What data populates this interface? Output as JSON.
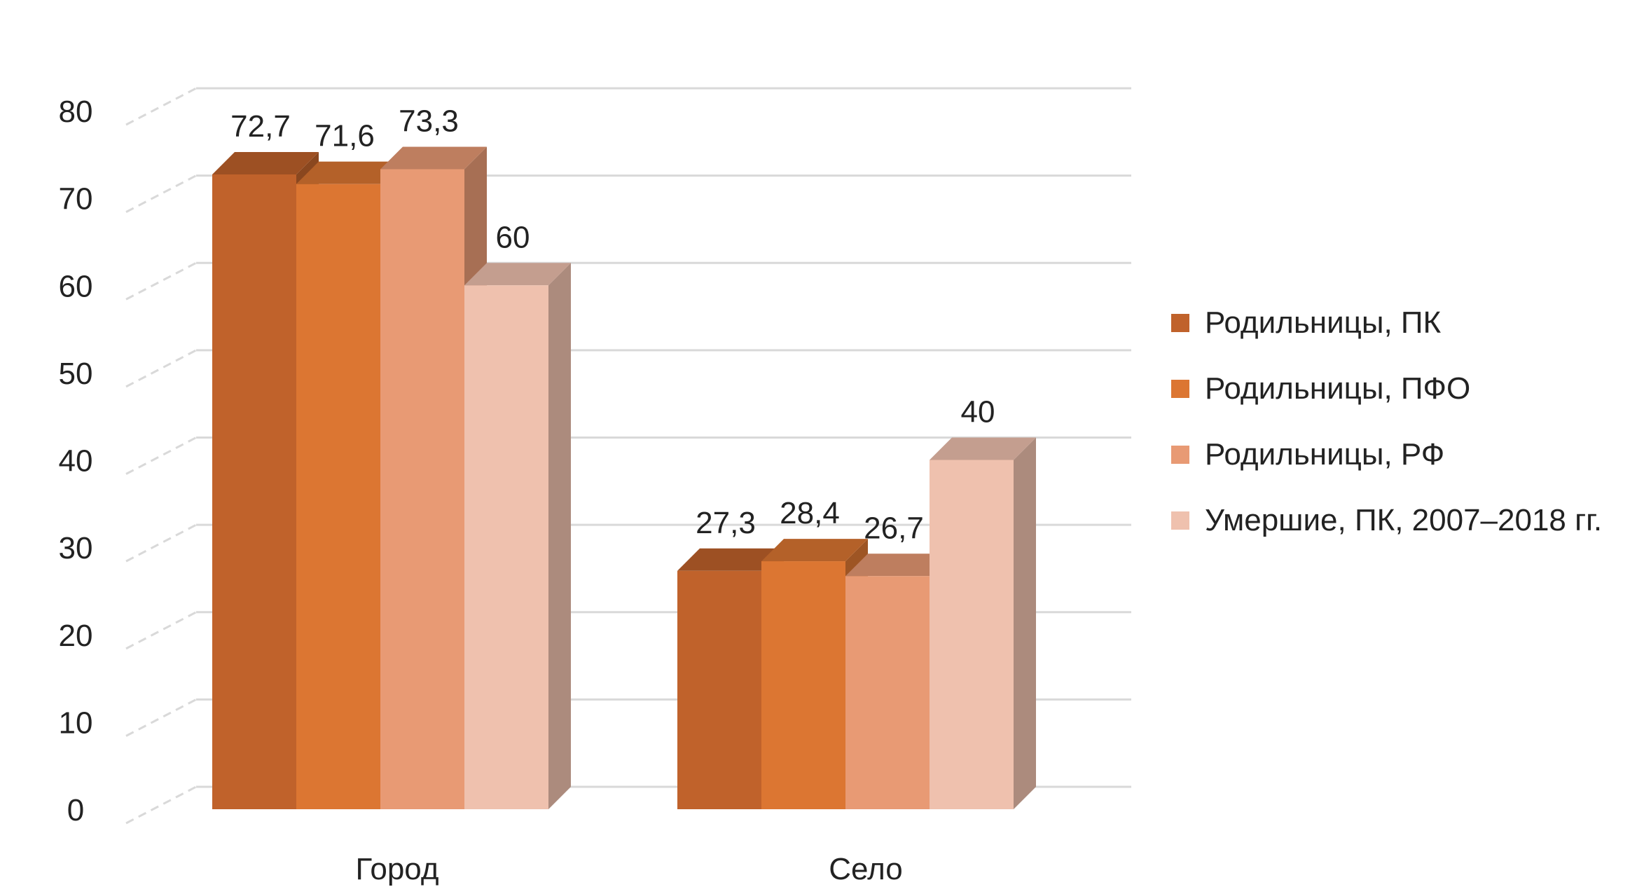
{
  "chart_data": {
    "type": "bar",
    "style": "3d-clustered-column",
    "categories": [
      "Город",
      "Село"
    ],
    "series": [
      {
        "name": "Родильницы, ПК",
        "values": [
          72.7,
          27.3
        ],
        "labels": [
          "72,7",
          "27,3"
        ],
        "color": "#C0622B"
      },
      {
        "name": "Родильницы, ПФО",
        "values": [
          71.6,
          28.4
        ],
        "labels": [
          "71,6",
          "28,4"
        ],
        "color": "#DC7632"
      },
      {
        "name": "Родильницы, РФ",
        "values": [
          73.3,
          26.7
        ],
        "labels": [
          "73,3",
          "26,7"
        ],
        "color": "#E89A74"
      },
      {
        "name": "Умершие, ПК, 2007–2018 гг.",
        "values": [
          60,
          40
        ],
        "labels": [
          "60",
          "40"
        ],
        "color": "#EFC1AE"
      }
    ],
    "y_ticks": [
      "0",
      "10",
      "20",
      "30",
      "40",
      "50",
      "60",
      "70",
      "80"
    ],
    "ylim": [
      0,
      80
    ],
    "grid": true,
    "legend_position": "right"
  }
}
